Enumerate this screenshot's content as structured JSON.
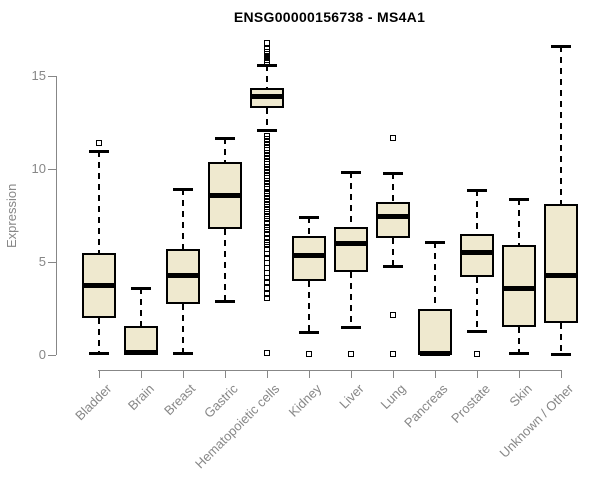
{
  "chart_data": {
    "type": "boxplot",
    "title": "ENSG00000156738 - MS4A1",
    "xlabel": "",
    "ylabel": "Expression",
    "ylim": [
      0,
      17
    ],
    "yticks": [
      0,
      5,
      10,
      15
    ],
    "grid": false,
    "legend": "none",
    "colors": {
      "box_fill": "#EFE9CF",
      "box_line": "#000000",
      "median_line": "#000000",
      "axis": "#878787",
      "tick_label": "#878787",
      "title": "#000000",
      "background": "#ffffff"
    },
    "categories": [
      "Bladder",
      "Brain",
      "Breast",
      "Gastric",
      "Hematopoietic cells",
      "Kidney",
      "Liver",
      "Lung",
      "Pancreas",
      "Prostate",
      "Skin",
      "Unknown / Other"
    ],
    "series": [
      {
        "name": "Bladder",
        "whisker_low": 0.1,
        "q1": 2.0,
        "median": 3.75,
        "q3": 5.5,
        "whisker_high": 10.95,
        "outliers": [
          11.4
        ]
      },
      {
        "name": "Brain",
        "whisker_low": 0.0,
        "q1": 0.0,
        "median": 0.15,
        "q3": 1.55,
        "whisker_high": 3.6,
        "outliers": []
      },
      {
        "name": "Breast",
        "whisker_low": 0.1,
        "q1": 2.75,
        "median": 4.25,
        "q3": 5.7,
        "whisker_high": 8.9,
        "outliers": []
      },
      {
        "name": "Gastric",
        "whisker_low": 2.9,
        "q1": 6.8,
        "median": 8.6,
        "q3": 10.4,
        "whisker_high": 11.65,
        "outliers": []
      },
      {
        "name": "Hematopoietic cells",
        "whisker_low": 12.1,
        "q1": 13.3,
        "median": 13.9,
        "q3": 14.35,
        "whisker_high": 15.6,
        "outliers": [
          16.8,
          16.45,
          16.3,
          16.2,
          16.1,
          15.95,
          15.85,
          15.75,
          11.8,
          11.62,
          11.45,
          11.3,
          11.15,
          11.0,
          10.85,
          10.7,
          10.55,
          10.4,
          10.25,
          10.1,
          9.95,
          9.8,
          9.65,
          9.5,
          9.35,
          9.2,
          9.05,
          8.9,
          8.7,
          8.55,
          8.4,
          8.2,
          8.05,
          7.85,
          7.7,
          7.5,
          7.3,
          7.1,
          6.9,
          6.7,
          6.5,
          6.3,
          6.1,
          5.9,
          5.7,
          5.45,
          5.2,
          4.95,
          4.7,
          4.4,
          4.15,
          3.9,
          3.6,
          3.3,
          3.05,
          0.1
        ]
      },
      {
        "name": "Kidney",
        "whisker_low": 1.25,
        "q1": 4.0,
        "median": 5.35,
        "q3": 6.4,
        "whisker_high": 7.4,
        "outliers": [
          0.05
        ]
      },
      {
        "name": "Liver",
        "whisker_low": 1.5,
        "q1": 4.45,
        "median": 6.0,
        "q3": 6.9,
        "whisker_high": 9.85,
        "outliers": [
          0.05
        ]
      },
      {
        "name": "Lung",
        "whisker_low": 4.8,
        "q1": 6.3,
        "median": 7.45,
        "q3": 8.2,
        "whisker_high": 9.8,
        "outliers": [
          11.65,
          2.15,
          0.05
        ]
      },
      {
        "name": "Pancreas",
        "whisker_low": 0.0,
        "q1": 0.0,
        "median": 0.1,
        "q3": 2.5,
        "whisker_high": 6.1,
        "outliers": []
      },
      {
        "name": "Prostate",
        "whisker_low": 1.3,
        "q1": 4.2,
        "median": 5.5,
        "q3": 6.5,
        "whisker_high": 8.85,
        "outliers": [
          0.05
        ]
      },
      {
        "name": "Skin",
        "whisker_low": 0.1,
        "q1": 1.5,
        "median": 3.6,
        "q3": 5.9,
        "whisker_high": 8.4,
        "outliers": []
      },
      {
        "name": "Unknown / Other",
        "whisker_low": 0.05,
        "q1": 1.7,
        "median": 4.3,
        "q3": 8.1,
        "whisker_high": 16.6,
        "outliers": []
      }
    ]
  }
}
